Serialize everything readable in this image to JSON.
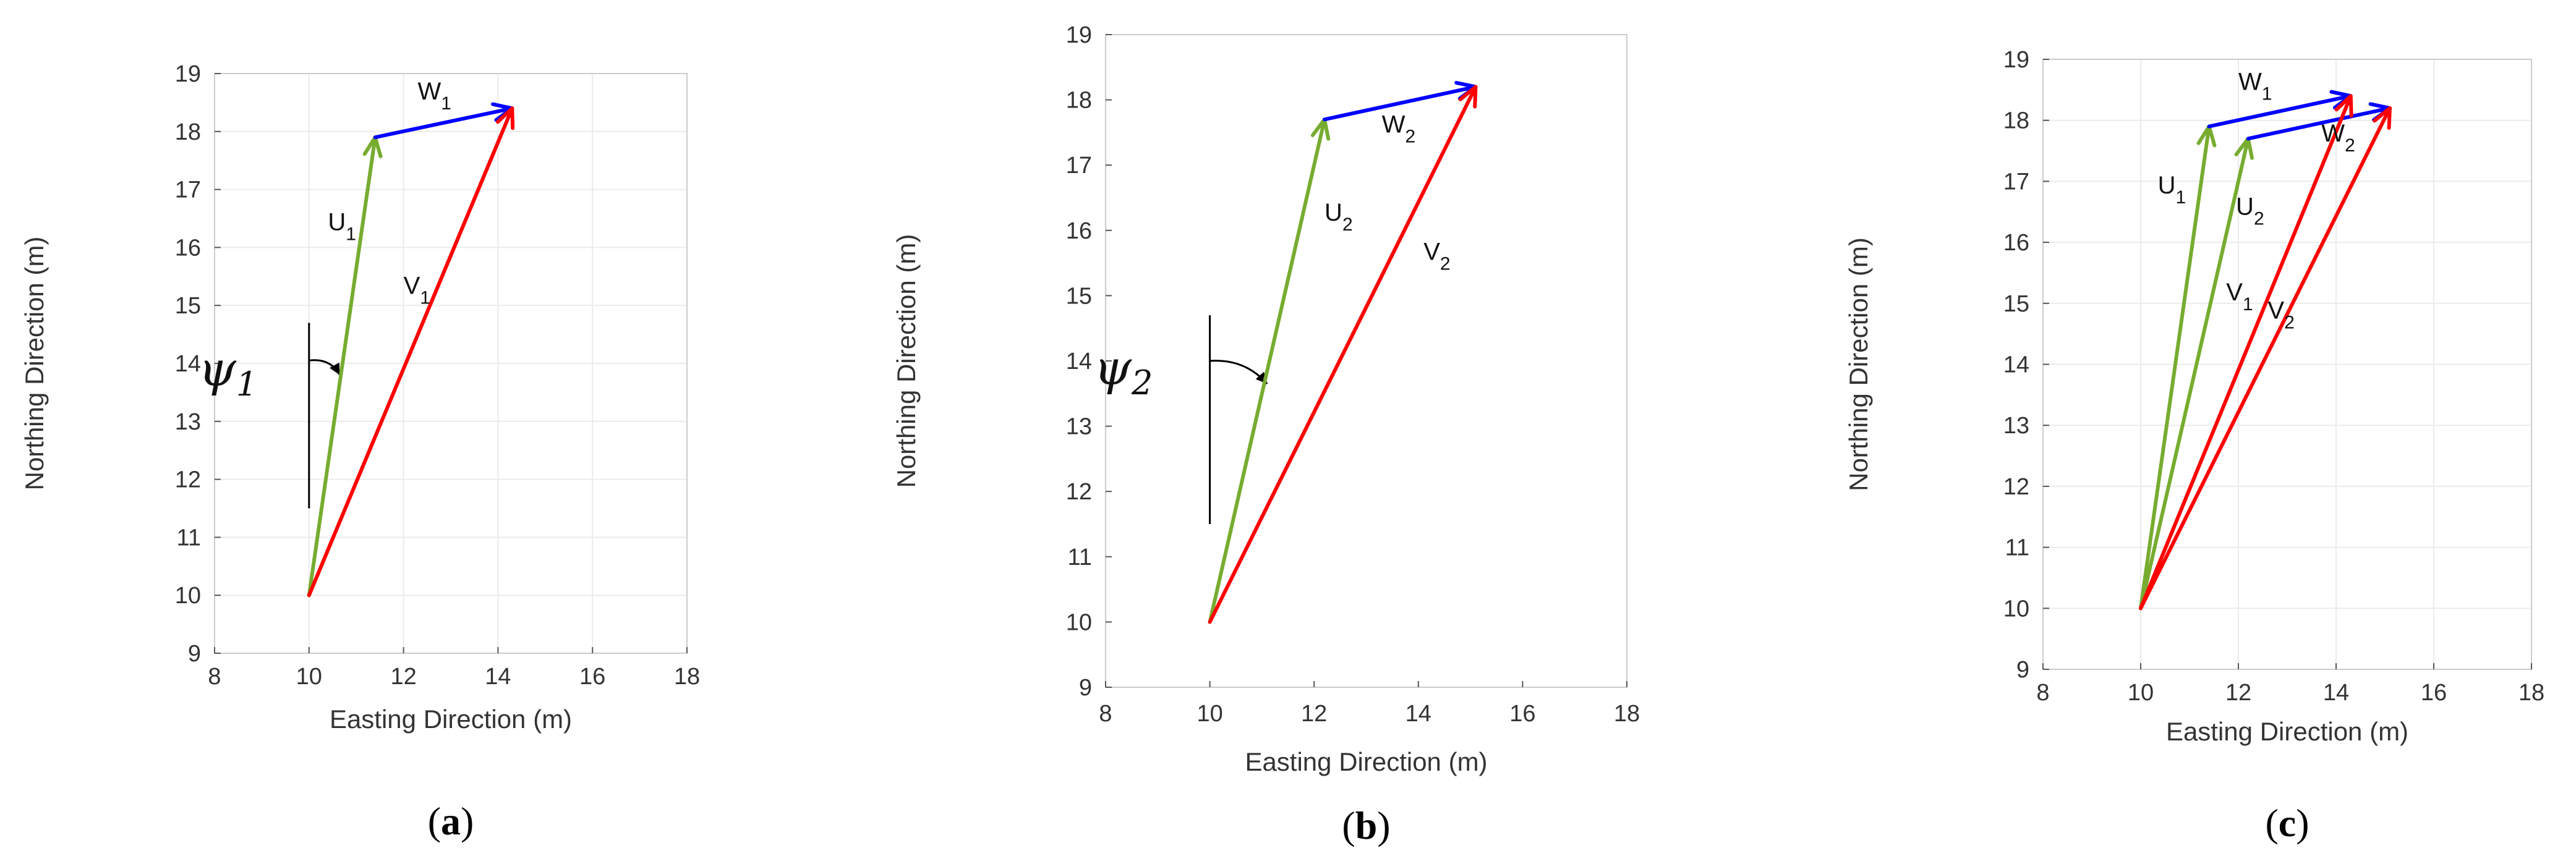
{
  "colors": {
    "U": "#77ac30",
    "V": "#ff0000",
    "W": "#0000ff",
    "grid": "#ebebeb",
    "axis": "#cccccc"
  },
  "chart_data": [
    {
      "type": "vector",
      "panel": "a",
      "caption": {
        "open": "(",
        "letter": "a",
        "close": ")"
      },
      "xlabel": "Easting Direction (m)",
      "ylabel": "Northing Direction (m)",
      "xlim": [
        8,
        18
      ],
      "ylim": [
        9,
        19
      ],
      "xticks": [
        "8",
        "10",
        "12",
        "14",
        "16",
        "18"
      ],
      "yticks": [
        "9",
        "10",
        "11",
        "12",
        "13",
        "14",
        "15",
        "16",
        "17",
        "18",
        "19"
      ],
      "grid": true,
      "vectors": [
        {
          "id": "U1",
          "base": "U",
          "sub": "1",
          "from": [
            10,
            10
          ],
          "to": [
            11.4,
            17.9
          ],
          "color": "U"
        },
        {
          "id": "W1",
          "base": "W",
          "sub": "1",
          "from": [
            11.4,
            17.9
          ],
          "to": [
            14.3,
            18.4
          ],
          "color": "W"
        },
        {
          "id": "V1",
          "base": "V",
          "sub": "1",
          "from": [
            10,
            10
          ],
          "to": [
            14.3,
            18.4
          ],
          "color": "V"
        }
      ],
      "labels": [
        {
          "base": "W",
          "sub": "1",
          "at": [
            12.3,
            18.55
          ]
        },
        {
          "base": "U",
          "sub": "1",
          "at": [
            10.4,
            16.3
          ]
        },
        {
          "base": "V",
          "sub": "1",
          "at": [
            12.0,
            15.2
          ]
        }
      ],
      "angle": {
        "base": "ψ",
        "sub": "1",
        "ref_x": 10,
        "ref_y0": 11.5,
        "ref_y1": 14.7,
        "label_at": [
          8.9,
          13.85
        ],
        "arrow_from": [
          10.0,
          14.05
        ],
        "arrow_to": [
          10.65,
          13.8
        ]
      }
    },
    {
      "type": "vector",
      "panel": "b",
      "caption": {
        "open": "(",
        "letter": "b",
        "close": ")"
      },
      "xlabel": "Easting Direction (m)",
      "ylabel": "Northing Direction (m)",
      "xlim": [
        8,
        18
      ],
      "ylim": [
        9,
        19
      ],
      "xticks": [
        "8",
        "10",
        "12",
        "14",
        "16",
        "18"
      ],
      "yticks": [
        "9",
        "10",
        "11",
        "12",
        "13",
        "14",
        "15",
        "16",
        "17",
        "18",
        "19"
      ],
      "grid": false,
      "vectors": [
        {
          "id": "U2",
          "base": "U",
          "sub": "2",
          "from": [
            10,
            10
          ],
          "to": [
            12.2,
            17.7
          ],
          "color": "U"
        },
        {
          "id": "W2",
          "base": "W",
          "sub": "2",
          "from": [
            12.2,
            17.7
          ],
          "to": [
            15.1,
            18.2
          ],
          "color": "W"
        },
        {
          "id": "V2",
          "base": "V",
          "sub": "2",
          "from": [
            10,
            10
          ],
          "to": [
            15.1,
            18.2
          ],
          "color": "V"
        }
      ],
      "labels": [
        {
          "base": "W",
          "sub": "2",
          "at": [
            13.3,
            17.5
          ]
        },
        {
          "base": "U",
          "sub": "2",
          "at": [
            12.2,
            16.15
          ]
        },
        {
          "base": "V",
          "sub": "2",
          "at": [
            14.1,
            15.55
          ]
        }
      ],
      "angle": {
        "base": "ψ",
        "sub": "2",
        "ref_x": 10,
        "ref_y0": 11.5,
        "ref_y1": 14.7,
        "label_at": [
          8.9,
          13.85
        ],
        "arrow_from": [
          10.0,
          14.0
        ],
        "arrow_to": [
          11.1,
          13.65
        ]
      }
    },
    {
      "type": "vector",
      "panel": "c",
      "caption": {
        "open": "(",
        "letter": "c",
        "close": ")"
      },
      "xlabel": "Easting Direction (m)",
      "ylabel": "Northing Direction (m)",
      "xlim": [
        8,
        18
      ],
      "ylim": [
        9,
        19
      ],
      "xticks": [
        "8",
        "10",
        "12",
        "14",
        "16",
        "18"
      ],
      "yticks": [
        "9",
        "10",
        "11",
        "12",
        "13",
        "14",
        "15",
        "16",
        "17",
        "18",
        "19"
      ],
      "grid": true,
      "vectors": [
        {
          "id": "U1",
          "base": "U",
          "sub": "1",
          "from": [
            10,
            10
          ],
          "to": [
            11.4,
            17.9
          ],
          "color": "U"
        },
        {
          "id": "U2",
          "base": "U",
          "sub": "2",
          "from": [
            10,
            10
          ],
          "to": [
            12.2,
            17.7
          ],
          "color": "U"
        },
        {
          "id": "W1",
          "base": "W",
          "sub": "1",
          "from": [
            11.4,
            17.9
          ],
          "to": [
            14.3,
            18.4
          ],
          "color": "W"
        },
        {
          "id": "W2",
          "base": "W",
          "sub": "2",
          "from": [
            12.2,
            17.7
          ],
          "to": [
            15.1,
            18.2
          ],
          "color": "W"
        },
        {
          "id": "V1",
          "base": "V",
          "sub": "1",
          "from": [
            10,
            10
          ],
          "to": [
            14.3,
            18.4
          ],
          "color": "V"
        },
        {
          "id": "V2",
          "base": "V",
          "sub": "2",
          "from": [
            10,
            10
          ],
          "to": [
            15.1,
            18.2
          ],
          "color": "V"
        }
      ],
      "labels": [
        {
          "base": "W",
          "sub": "1",
          "at": [
            12.0,
            18.5
          ]
        },
        {
          "base": "W",
          "sub": "2",
          "at": [
            13.7,
            17.65
          ]
        },
        {
          "base": "U",
          "sub": "1",
          "at": [
            10.35,
            16.8
          ]
        },
        {
          "base": "U",
          "sub": "2",
          "at": [
            11.95,
            16.45
          ]
        },
        {
          "base": "V",
          "sub": "1",
          "at": [
            11.75,
            15.05
          ]
        },
        {
          "base": "V",
          "sub": "2",
          "at": [
            12.6,
            14.75
          ]
        }
      ]
    }
  ]
}
